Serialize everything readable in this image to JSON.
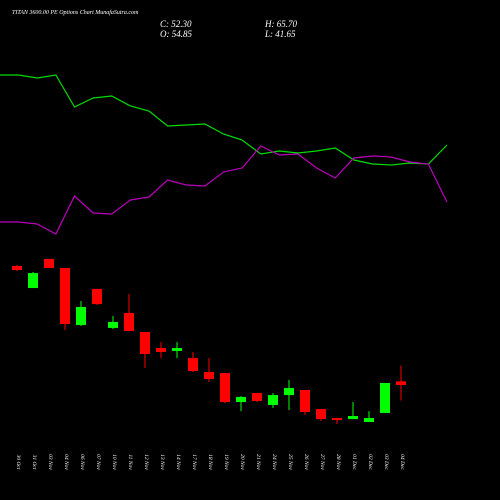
{
  "chart_data": {
    "type": "candlestick",
    "title": "TITAN 3600.00 PE Options Chart MunafaSutra.com",
    "info": {
      "close": "C: 52.30",
      "high": "H: 65.70",
      "open": "O: 54.85",
      "low": "L: 41.65"
    },
    "categories": [
      "30 Oct",
      "31 Oct",
      "03 Nov",
      "04 Nov",
      "06 Nov",
      "07 Nov",
      "10 Nov",
      "11 Nov",
      "12 Nov",
      "13 Nov",
      "14 Nov",
      "17 Nov",
      "18 Nov",
      "19 Nov",
      "20 Nov",
      "21 Nov",
      "24 Nov",
      "25 Nov",
      "26 Nov",
      "27 Nov",
      "28 Nov",
      "01 Dec",
      "02 Dec",
      "03 Dec",
      "04 Dec"
    ],
    "open": [
      134.1,
      118.9,
      138.9,
      132.7,
      93.5,
      118.3,
      91.5,
      101.8,
      88.7,
      77.7,
      75.7,
      70.8,
      61.2,
      60.5,
      40.6,
      46.8,
      38.6,
      45.4,
      48.9,
      35.8,
      29.6,
      28.9,
      26.9,
      33.1,
      54.85
    ],
    "close": [
      131.3,
      129.2,
      132.7,
      94.2,
      105.9,
      107.9,
      95.6,
      89.4,
      73.6,
      75.0,
      77.7,
      61.9,
      56.4,
      40.6,
      44.1,
      41.3,
      45.4,
      50.2,
      33.8,
      28.9,
      28.3,
      31.0,
      29.6,
      53.7,
      52.3
    ],
    "high": [
      134.7,
      129.9,
      138.9,
      132.7,
      110.0,
      118.3,
      99.7,
      114.8,
      88.7,
      81.8,
      81.8,
      75.0,
      70.8,
      60.5,
      44.7,
      46.8,
      46.8,
      55.7,
      48.9,
      35.8,
      29.6,
      40.6,
      34.4,
      53.7,
      65.7
    ],
    "low": [
      130.6,
      118.9,
      132.7,
      90.1,
      92.8,
      107.3,
      90.8,
      89.4,
      64.0,
      70.8,
      70.8,
      61.2,
      54.4,
      39.9,
      34.4,
      40.6,
      36.5,
      35.1,
      31.7,
      27.6,
      25.5,
      28.9,
      26.9,
      33.1,
      41.65
    ],
    "up_color": "#00ff00",
    "down_color": "#ff0000",
    "ylim": [
      21.4,
      141.6
    ],
    "y2lim": [
      0,
      100
    ],
    "series": [
      {
        "axis": "y2",
        "color": "#00dd00",
        "values": [
          85,
          85,
          84.4,
          85,
          78.6,
          80.4,
          80.8,
          78.8,
          77.8,
          74.8,
          75,
          75.2,
          73.2,
          72,
          69.2,
          69.8,
          69.4,
          69.8,
          70.4,
          68,
          67.2,
          67,
          67.4,
          67.2,
          71
        ]
      },
      {
        "axis": "y2",
        "color": "#bb00bb",
        "values": [
          55.6,
          55.6,
          55.2,
          53.2,
          60.8,
          57.4,
          57.2,
          60,
          60.6,
          64,
          63,
          62.8,
          65.6,
          66.4,
          70.8,
          69,
          69.2,
          66.4,
          64.4,
          68.4,
          68.8,
          68.6,
          67.6,
          67.2,
          59.6
        ]
      }
    ]
  }
}
